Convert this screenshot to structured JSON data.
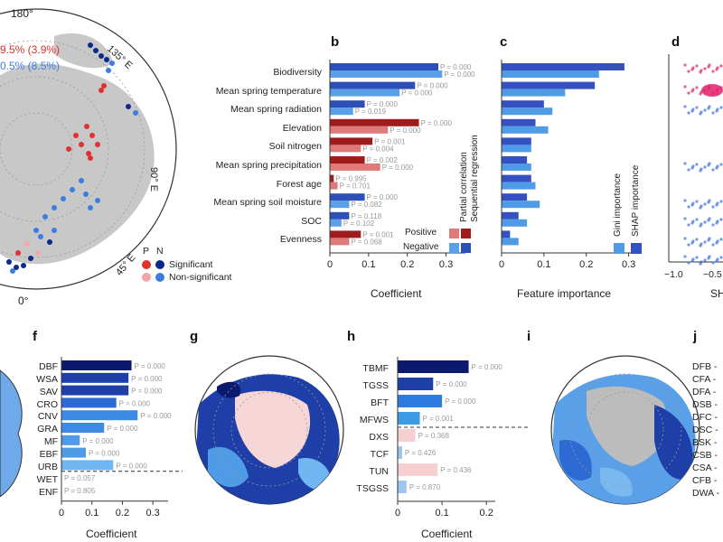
{
  "panel_letters": {
    "b": "b",
    "c": "c",
    "d": "d",
    "f": "f",
    "g": "g",
    "h": "h",
    "i": "i",
    "j": "j"
  },
  "map_a": {
    "lat_180": "180°",
    "lat_0": "0°",
    "lon_135": "135° E",
    "lon_90": "90° E",
    "lon_45": "45° E",
    "pct_red": "9.5% (3.9%)",
    "pct_blue": "0.5% (8.5%)",
    "legend_p": "P",
    "legend_n": "N",
    "legend_sig": "Significant",
    "legend_nonsig": "Non-significant",
    "colors": {
      "sig_p": "#e03030",
      "sig_n": "#0a2a8a",
      "nonsig_p": "#f4a6a6",
      "nonsig_n": "#3a7ee0",
      "land": "#c8c8c8"
    }
  },
  "chart_data": [
    {
      "id": "b",
      "type": "bar",
      "title": "",
      "xlabel": "Coefficient",
      "ylabel": "",
      "xlim": [
        0,
        0.35
      ],
      "xticks": [
        "0",
        "0.1",
        "0.2",
        "0.3"
      ],
      "categories": [
        "Biodiversity",
        "Mean spring temperature",
        "Mean spring radiation",
        "Elevation",
        "Soil nitrogen",
        "Mean spring precipitation",
        "Forest age",
        "Mean spring soil moisture",
        "SOC",
        "Evenness"
      ],
      "series": [
        {
          "name": "Sequential regression",
          "values": [
            0.28,
            0.22,
            0.09,
            0.23,
            0.11,
            0.09,
            0.01,
            0.09,
            0.05,
            0.08
          ],
          "signs": [
            "+",
            "+",
            "+",
            "-",
            "-",
            "-",
            "-",
            "+",
            "+",
            "-"
          ],
          "pvalues": [
            "P = 0.000",
            "P = 0.000",
            "P = 0.000",
            "P = 0.000",
            "P = 0.001",
            "P = 0.002",
            "P = 0.995",
            "P = 0.000",
            "P = 0.118",
            "P = 0.001"
          ]
        },
        {
          "name": "Partial correlation",
          "values": [
            0.29,
            0.18,
            0.06,
            0.15,
            0.08,
            0.13,
            0.02,
            0.05,
            0.03,
            0.05
          ],
          "signs": [
            "+",
            "+",
            "+",
            "-",
            "-",
            "-",
            "-",
            "+",
            "+",
            "-"
          ],
          "pvalues": [
            "P = 0.000",
            "P = 0.000",
            "P = 0.019",
            "P = 0.000",
            "P = 0.004",
            "P = 0.000",
            "P = 0.701",
            "P = 0.082",
            "P = 0.102",
            "P = 0.068"
          ]
        }
      ],
      "legend": {
        "positive": "Positive",
        "negative": "Negative",
        "col1": "Partial correlation",
        "col2": "Sequential regression"
      },
      "colors": {
        "pos_seq": "#a01c1c",
        "pos_par": "#e07a7a",
        "neg_seq": "#2d4fb8",
        "neg_par": "#5aa0e8"
      }
    },
    {
      "id": "c",
      "type": "bar",
      "xlabel": "Feature importance",
      "xlim": [
        0,
        0.32
      ],
      "xticks": [
        "0",
        "0.1",
        "0.2",
        "0.3"
      ],
      "series": [
        {
          "name": "SHAP importance",
          "values": [
            0.29,
            0.22,
            0.1,
            0.08,
            0.07,
            0.06,
            0.07,
            0.06,
            0.04,
            0.02
          ]
        },
        {
          "name": "Gini importance",
          "values": [
            0.23,
            0.15,
            0.12,
            0.11,
            0.07,
            0.07,
            0.08,
            0.09,
            0.06,
            0.04
          ]
        }
      ],
      "legend": {
        "gini": "Gini importance",
        "shap": "SHAP importance"
      },
      "colors": {
        "shap": "#3550c0",
        "gini": "#4f9be6"
      }
    },
    {
      "id": "d",
      "type": "scatter",
      "xticks": [
        "−1.0",
        "−0.5"
      ],
      "xlabel": "SH"
    },
    {
      "id": "f",
      "type": "bar",
      "xlabel": "Coefficient",
      "xlim": [
        0,
        0.35
      ],
      "xticks": [
        "0",
        "0.1",
        "0.2",
        "0.3"
      ],
      "categories": [
        "DBF",
        "WSA",
        "SAV",
        "CRO",
        "CNV",
        "GRA",
        "MF",
        "EBF",
        "URB",
        "WET",
        "ENF"
      ],
      "values": [
        0.23,
        0.22,
        0.22,
        0.18,
        0.25,
        0.14,
        0.06,
        0.08,
        0.17,
        0.0,
        0.0
      ],
      "pvalues": [
        "P = 0.000",
        "P = 0.000",
        "P = 0.000",
        "P = 0.000",
        "P = 0.000",
        "P = 0.000",
        "P = 0.000",
        "P = 0.000",
        "P = 0.000",
        "P = 0.057",
        "P = 0.805"
      ],
      "colors": [
        "#0b1a6e",
        "#1f3fa8",
        "#1f3fa8",
        "#2d6ad4",
        "#3d8ae6",
        "#3d8ae6",
        "#4f9be6",
        "#4f9be6",
        "#6fb6f2",
        "#c9def8",
        "#c9def8"
      ]
    },
    {
      "id": "h",
      "type": "bar",
      "xlabel": "Coefficient",
      "xlim": [
        0,
        0.22
      ],
      "xticks": [
        "0",
        "0.1",
        "0.2"
      ],
      "categories": [
        "TBMF",
        "TGSS",
        "BFT",
        "MFWS",
        "DXS",
        "TCF",
        "TUN",
        "TSGSS"
      ],
      "values": [
        0.16,
        0.08,
        0.1,
        0.05,
        0.04,
        0.01,
        0.09,
        0.02
      ],
      "pvalues": [
        "P = 0.000",
        "P = 0.000",
        "P = 0.000",
        "P = 0.001",
        "P = 0.368",
        "P = 0.426",
        "P = 0.436",
        "P = 0.870"
      ],
      "colors": [
        "#0b1a6e",
        "#1f3fa8",
        "#2d7ae0",
        "#3d9be6",
        "#f6d0d0",
        "#9cc6f0",
        "#f6d0d0",
        "#9cc6f0"
      ]
    },
    {
      "id": "j",
      "type": "scatter",
      "categories": [
        "DFB",
        "CFA",
        "DFA",
        "DSB",
        "DFC",
        "DSC",
        "BSK",
        "CSB",
        "CSA",
        "CFB",
        "DWA"
      ]
    }
  ]
}
